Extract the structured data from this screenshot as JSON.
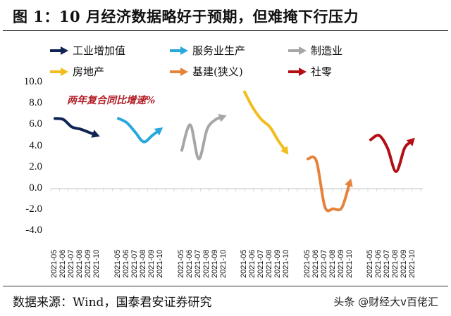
{
  "title": "图 1：10 月经济数据略好于预期，但难掩下行压力",
  "source": "数据来源：Wind，国泰君安证券研究",
  "watermark": "头条 @财经大v百佬汇",
  "annotation": "两年复合同比增速%",
  "legend": [
    {
      "label": "工业增加值",
      "color": "#0f2452"
    },
    {
      "label": "服务业生产",
      "color": "#29a8dc"
    },
    {
      "label": "制造业",
      "color": "#a6a6a6"
    },
    {
      "label": "房地产",
      "color": "#f2bd1c"
    },
    {
      "label": "基建(狭义)",
      "color": "#e5833b"
    },
    {
      "label": "社零",
      "color": "#b30d15"
    }
  ],
  "y_ticks": [
    "10.0",
    "8.0",
    "6.0",
    "4.0",
    "2.0",
    "0.0",
    "-2.0",
    "-4.0"
  ],
  "chart_data": {
    "type": "line",
    "title": "图 1：10 月经济数据略好于预期，但难掩下行压力",
    "subtitle": "两年复合同比增速%",
    "xlabel": "",
    "ylabel": "",
    "ylim": [
      -4.0,
      10.0
    ],
    "grid": false,
    "legend_position": "top",
    "categories": [
      "2021-05",
      "2021-06",
      "2021-07",
      "2021-08",
      "2021-09",
      "2021-10"
    ],
    "series": [
      {
        "name": "工业增加值",
        "color": "#0f2452",
        "values": [
          6.6,
          6.5,
          5.8,
          5.6,
          5.3,
          5.0
        ]
      },
      {
        "name": "服务业生产",
        "color": "#29a8dc",
        "values": [
          6.6,
          6.2,
          5.3,
          4.4,
          5.0,
          5.6
        ]
      },
      {
        "name": "制造业",
        "color": "#a6a6a6",
        "values": [
          3.6,
          6.0,
          2.8,
          5.6,
          6.5,
          6.8
        ]
      },
      {
        "name": "房地产",
        "color": "#f2bd1c",
        "values": [
          9.1,
          7.6,
          6.5,
          5.8,
          4.5,
          3.4
        ]
      },
      {
        "name": "基建(狭义)",
        "color": "#e5833b",
        "values": [
          2.8,
          2.6,
          -1.7,
          -1.9,
          -1.8,
          0.7
        ]
      },
      {
        "name": "社零",
        "color": "#b30d15",
        "values": [
          4.6,
          5.0,
          3.8,
          1.6,
          3.8,
          4.6
        ]
      }
    ]
  }
}
